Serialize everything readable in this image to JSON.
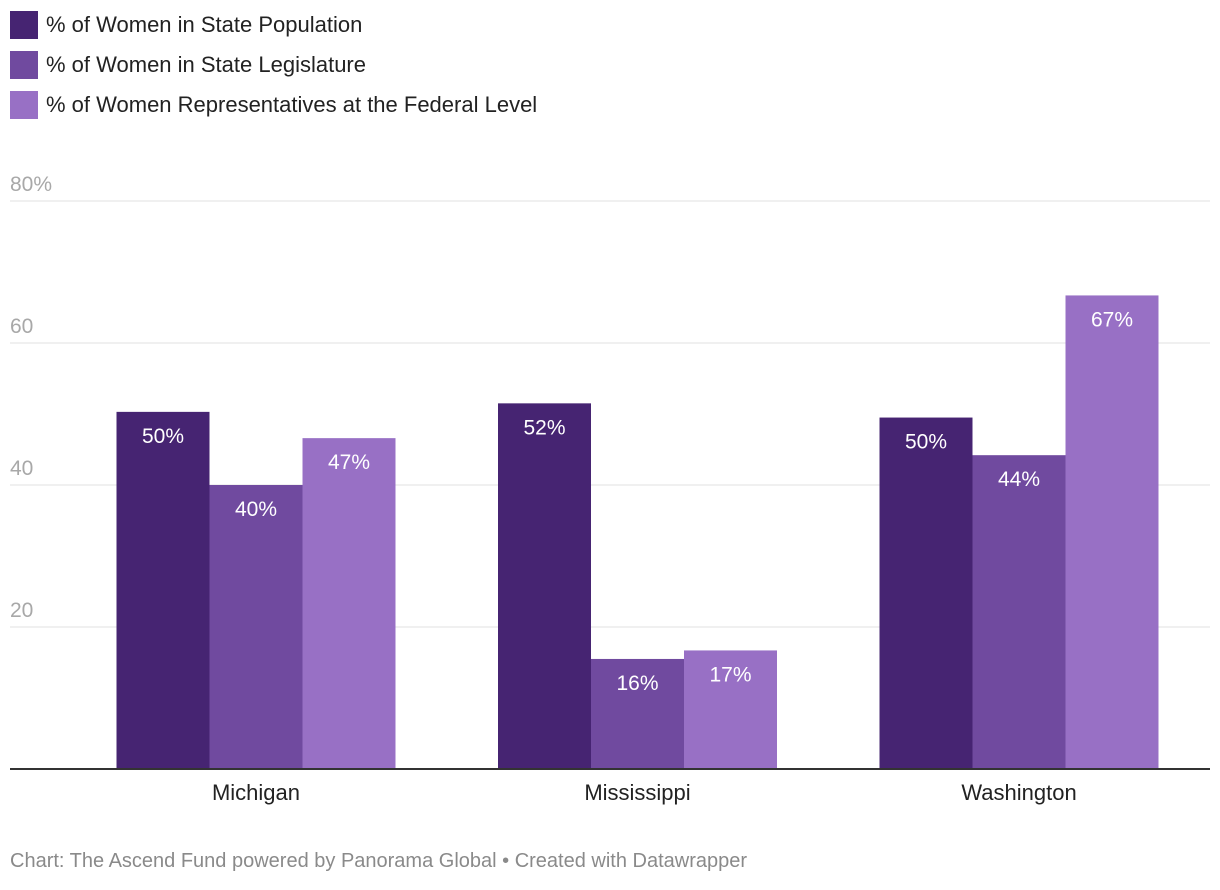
{
  "chart_data": {
    "type": "bar",
    "categories": [
      "Michigan",
      "Mississippi",
      "Washington"
    ],
    "series": [
      {
        "name": "% of Women in State Population",
        "color": "#462472",
        "values": [
          50.3,
          51.5,
          49.5
        ],
        "labels": [
          "50%",
          "52%",
          "50%"
        ]
      },
      {
        "name": "% of Women in State Legislature",
        "color": "#704a9f",
        "values": [
          40,
          15.5,
          44.2
        ],
        "labels": [
          "40%",
          "16%",
          "44%"
        ]
      },
      {
        "name": "% of Women Representatives at the Federal Level",
        "color": "#9870c5",
        "values": [
          46.6,
          16.7,
          66.7
        ],
        "labels": [
          "47%",
          "17%",
          "67%"
        ]
      }
    ],
    "ylim": [
      0,
      80
    ],
    "yticks": [
      {
        "value": 80,
        "label": "80%"
      },
      {
        "value": 60,
        "label": "60"
      },
      {
        "value": 40,
        "label": "40"
      },
      {
        "value": 20,
        "label": "20"
      }
    ],
    "grid": true,
    "legend_position": "top-left"
  },
  "footer": {
    "text": "Chart: The Ascend Fund powered by Panorama Global • Created with Datawrapper"
  }
}
